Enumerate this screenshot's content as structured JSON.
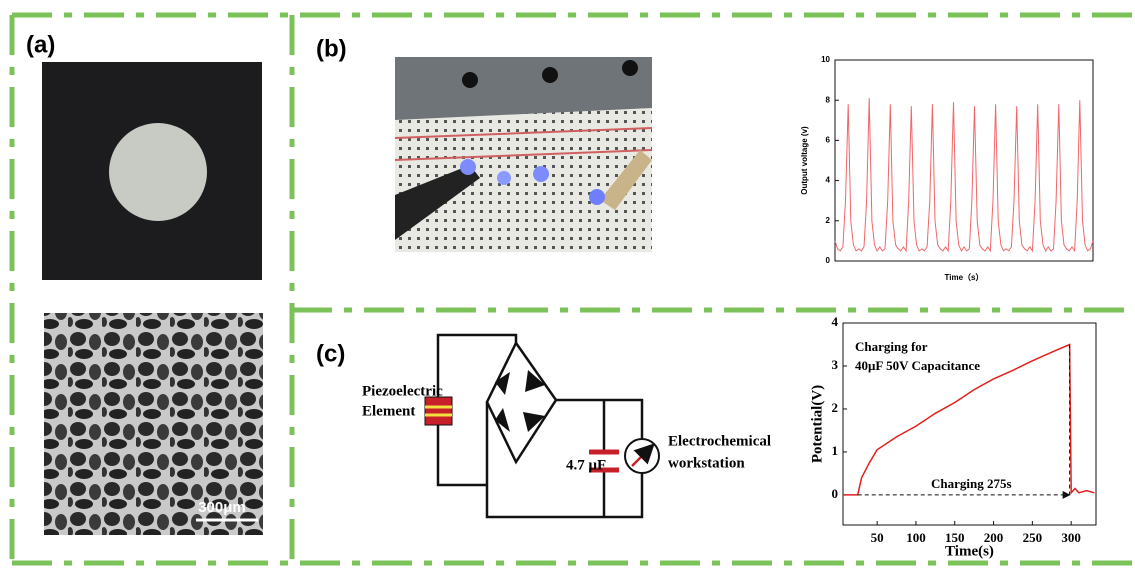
{
  "panels": {
    "a": {
      "label": "(a)",
      "scale_bar": "300μm"
    },
    "b": {
      "label": "(b)"
    },
    "c": {
      "label": "(c)",
      "circuit": {
        "source": [
          "Piezoelectric",
          "Element"
        ],
        "capacitor": "4.7 μF",
        "meter": [
          "Electrochemical",
          "workstation"
        ]
      }
    }
  },
  "chart_data": [
    {
      "type": "line",
      "ylabel": "Output voltage (v)",
      "xlabel": "Time（s）",
      "color": "#f0666a",
      "ylim": [
        0,
        10
      ],
      "yticks": [
        0,
        2,
        4,
        6,
        8,
        10
      ],
      "values": [
        1.0,
        0.6,
        0.5,
        0.7,
        3.0,
        7.8,
        2.0,
        0.8,
        0.5,
        0.6,
        0.5,
        0.7,
        3.0,
        8.1,
        2.0,
        0.8,
        0.5,
        0.7,
        0.5,
        0.6,
        3.0,
        7.8,
        2.0,
        0.8,
        0.6,
        0.5,
        0.7,
        0.5,
        3.0,
        7.7,
        2.0,
        0.8,
        0.5,
        0.6,
        0.5,
        0.7,
        3.0,
        7.8,
        2.0,
        0.8,
        0.6,
        0.5,
        0.7,
        0.5,
        3.0,
        7.9,
        2.0,
        0.8,
        0.5,
        0.7,
        0.5,
        0.6,
        3.0,
        7.7,
        2.0,
        0.8,
        0.6,
        0.5,
        0.7,
        0.5,
        3.0,
        7.8,
        2.0,
        0.8,
        0.5,
        0.6,
        0.5,
        0.7,
        3.0,
        7.7,
        2.0,
        0.8,
        0.6,
        0.5,
        0.7,
        0.5,
        3.0,
        7.8,
        2.0,
        0.8,
        0.5,
        0.7,
        0.5,
        0.6,
        3.0,
        7.8,
        2.0,
        0.8,
        0.6,
        0.5,
        0.7,
        0.5,
        3.0,
        8.0,
        2.0,
        0.8,
        0.5,
        0.6,
        1.0
      ]
    },
    {
      "type": "line",
      "ylabel": "Potential(V)",
      "xlabel": "Time(s)",
      "color": "#e0201c",
      "annotations": [
        "Charging for",
        "40μF 50V Capacitance",
        "Charging  275s"
      ],
      "xlim": [
        6,
        332
      ],
      "xticks": [
        50,
        100,
        150,
        200,
        250,
        300
      ],
      "ylim": [
        -0.7,
        4
      ],
      "yticks": [
        0,
        1,
        2,
        3,
        4
      ],
      "x": [
        6,
        25,
        30,
        40,
        50,
        75,
        100,
        125,
        150,
        175,
        200,
        225,
        250,
        275,
        298,
        300,
        305,
        310,
        320,
        330
      ],
      "values": [
        0,
        0,
        0.4,
        0.75,
        1.05,
        1.35,
        1.6,
        1.9,
        2.15,
        2.45,
        2.7,
        2.9,
        3.12,
        3.32,
        3.5,
        0.05,
        0.15,
        0.05,
        0.1,
        0.05
      ]
    }
  ]
}
